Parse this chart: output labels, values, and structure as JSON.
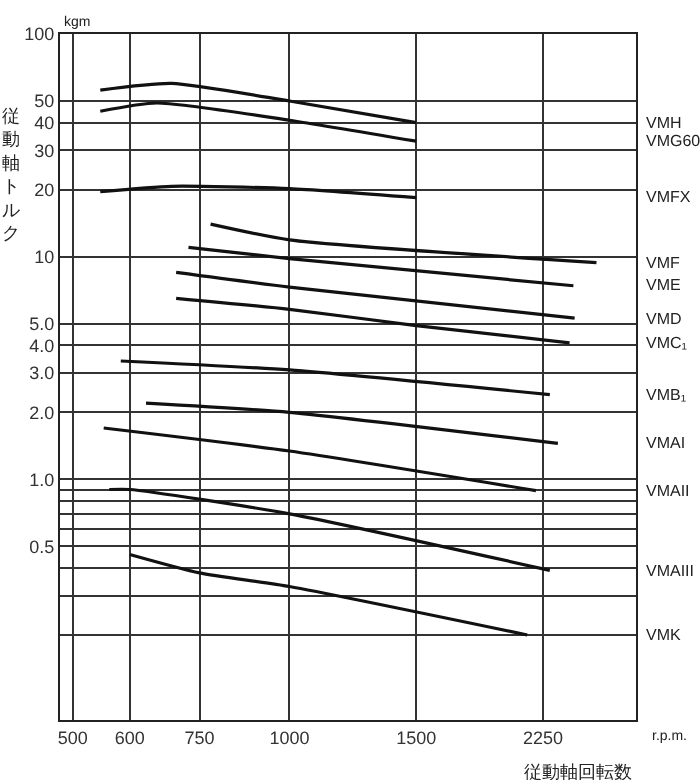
{
  "chart_data": {
    "type": "line",
    "xlabel": "従動軸回転数",
    "ylabel": "従動軸トルク",
    "annotations": [
      "kgm",
      "r.p.m."
    ],
    "log": "xy",
    "grid": true,
    "legend": false,
    "marker": "none",
    "line_style": "solid",
    "xlim": [
      480,
      3030
    ],
    "xticks": [
      500,
      600,
      750,
      1000,
      1500,
      2250
    ],
    "ylim": [
      0.083,
      100
    ],
    "yticks": [
      100,
      50,
      40,
      30,
      20,
      10,
      {
        "value": 5,
        "label": "5.0"
      },
      {
        "value": 4,
        "label": "4.0"
      },
      {
        "value": 3,
        "label": "3.0"
      },
      {
        "value": 2,
        "label": "2.0"
      },
      {
        "value": 1,
        "label": "1.0"
      },
      {
        "value": 0.9,
        "label": null
      },
      {
        "value": 0.8,
        "label": null
      },
      {
        "value": 0.7,
        "label": null
      },
      {
        "value": 0.6,
        "label": null
      },
      0.5,
      {
        "value": 0.4,
        "label": null
      },
      {
        "value": 0.3,
        "label": null
      },
      {
        "value": 0.2,
        "label": null
      }
    ],
    "series": [
      {
        "name": "VMH",
        "color": "#111111",
        "x": [
          546,
          686,
          1000,
          1500
        ],
        "values": [
          56,
          60,
          50,
          40
        ]
      },
      {
        "name": "VMG60",
        "color": "#111111",
        "x": [
          546,
          654,
          1000,
          1500
        ],
        "values": [
          45,
          49,
          41,
          33
        ]
      },
      {
        "name": "VMFX",
        "color": "#111111",
        "x": [
          546,
          686,
          1000,
          1500
        ],
        "values": [
          19.6,
          20.7,
          20.2,
          18.4
        ]
      },
      {
        "name": "VMF",
        "color": "#111111",
        "x": [
          777,
          1000,
          2670
        ],
        "values": [
          14,
          11.9,
          9.4
        ]
      },
      {
        "name": "VME",
        "color": "#111111",
        "x": [
          724,
          1000,
          2480
        ],
        "values": [
          11,
          9.8,
          7.4
        ]
      },
      {
        "name": "VMD",
        "color": "#111111",
        "x": [
          696,
          1000,
          2490
        ],
        "values": [
          8.5,
          7.3,
          5.3
        ]
      },
      {
        "name": "VMC₁",
        "color": "#111111",
        "x": [
          696,
          1000,
          1500,
          2450
        ],
        "values": [
          6.5,
          5.8,
          4.9,
          4.1
        ]
      },
      {
        "name": "VMB₁",
        "color": "#111111",
        "x": [
          583,
          1000,
          2300
        ],
        "values": [
          3.4,
          3.1,
          2.4
        ]
      },
      {
        "name": "VMAI",
        "color": "#111111",
        "x": [
          632,
          1000,
          2360
        ],
        "values": [
          2.2,
          2.0,
          1.45
        ]
      },
      {
        "name": "VMAII",
        "color": "#111111",
        "x": [
          552,
          1000,
          2200
        ],
        "values": [
          1.7,
          1.34,
          0.89
        ]
      },
      {
        "name": "VMAIII",
        "color": "#111111",
        "x": [
          562,
          600,
          1000,
          2300
        ],
        "values": [
          0.9,
          0.9,
          0.7,
          0.39
        ]
      },
      {
        "name": "VMK",
        "color": "#111111",
        "x": [
          600,
          750,
          1000,
          2140
        ],
        "values": [
          0.46,
          0.38,
          0.33,
          0.2
        ]
      }
    ]
  }
}
